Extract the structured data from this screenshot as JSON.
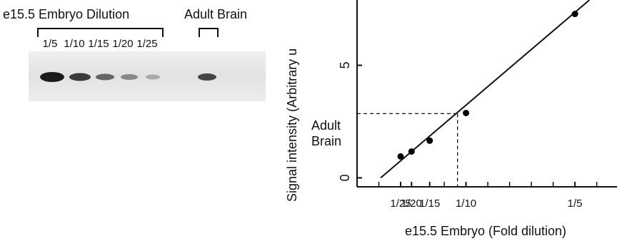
{
  "gel": {
    "group_label": "e15.5 Embryo Dilution",
    "control_label": "Adult Brain",
    "lanes": [
      "1/5",
      "1/10",
      "1/15",
      "1/20",
      "1/25"
    ]
  },
  "chart_data": {
    "type": "scatter",
    "xlabel": "e15.5 Embryo (Fold dilution)",
    "ylabel": "Signal intensity (Arbitrary u",
    "x": [
      0.04,
      0.05,
      0.0667,
      0.1,
      0.2
    ],
    "values": [
      0.95,
      1.17,
      1.65,
      2.88,
      7.28
    ],
    "color": "#000000",
    "fit_line": {
      "x": [
        0.0217,
        0.2133
      ],
      "y": [
        0,
        7.9
      ]
    },
    "reference": {
      "label_lines": [
        "Adult",
        "Brain"
      ],
      "x": 0.0922,
      "y": 2.85
    },
    "xlim": [
      0,
      0.2386
    ],
    "ylim": [
      -0.4,
      7.9
    ],
    "xticks": [
      {
        "value": 0.04,
        "label": "1/25"
      },
      {
        "value": 0.05,
        "label": "1/20"
      },
      {
        "value": 0.0667,
        "label": "1/15"
      },
      {
        "value": 0.1,
        "label": "1/10"
      },
      {
        "value": 0.2,
        "label": "1/5"
      }
    ],
    "xminorticks": [
      0.02,
      0.08,
      0.12,
      0.14,
      0.16,
      0.18,
      0.22
    ],
    "yticks": [
      0,
      5
    ]
  }
}
